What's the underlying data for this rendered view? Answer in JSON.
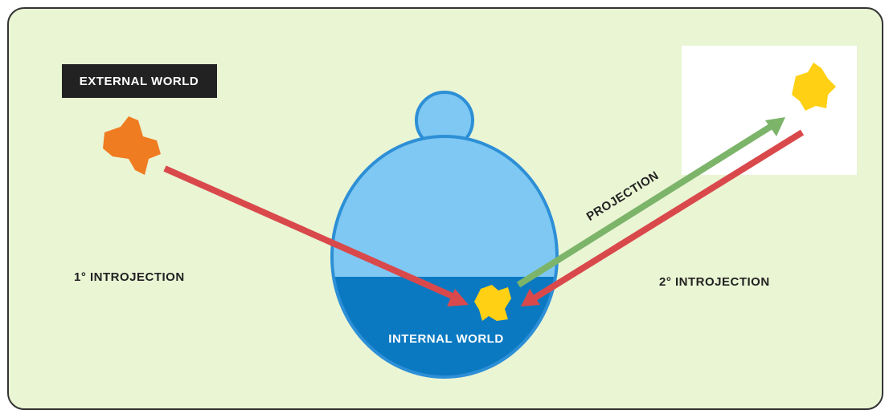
{
  "labels": {
    "external_world": "EXTERNAL WORLD",
    "introjection_1": "1° INTROJECTION",
    "projection": "PROJECTION",
    "introjection_2": "2° INTROJECTION",
    "internal_world": "INTERNAL WORLD"
  }
}
